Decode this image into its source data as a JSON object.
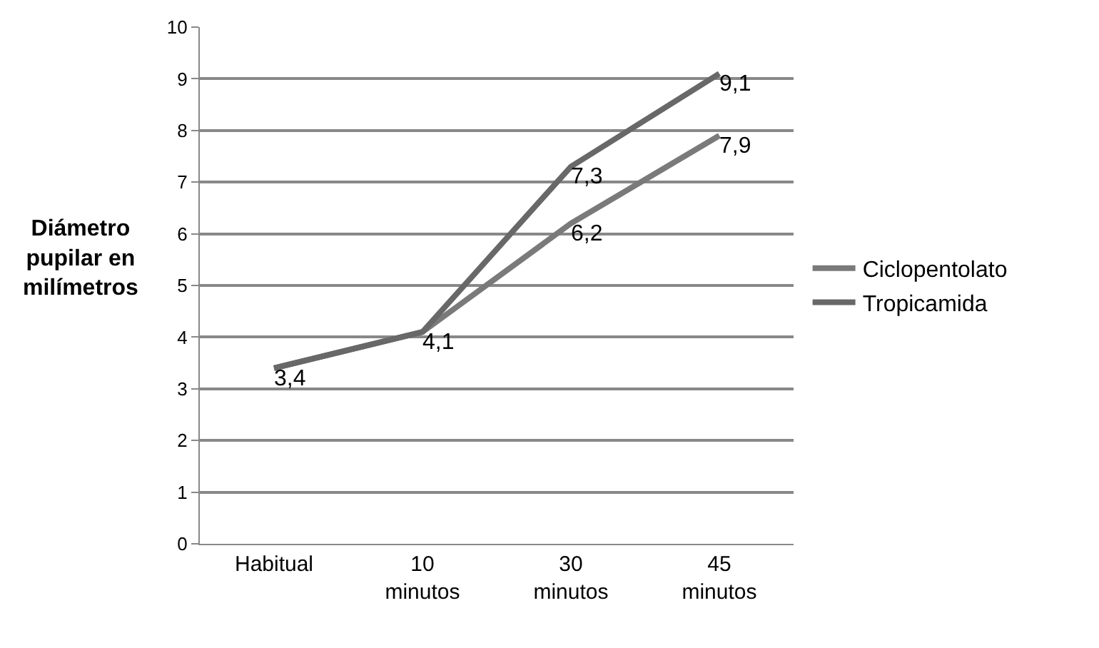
{
  "chart_data": {
    "type": "line",
    "ylabel": "Diámetro\npupilar en\nmilímetros",
    "categories": [
      "Habitual",
      "10\nminutos",
      "30\nminutos",
      "45\nminutos"
    ],
    "series": [
      {
        "name": "Ciclopentolato",
        "color": "#7a7a7a",
        "values": [
          3.4,
          4.1,
          6.2,
          7.9
        ],
        "value_labels": [
          "3,4",
          "4,1",
          "6,2",
          "7,9"
        ]
      },
      {
        "name": "Tropicamida",
        "color": "#686868",
        "values": [
          3.4,
          4.1,
          7.3,
          9.1
        ],
        "value_labels": [
          null,
          null,
          "7,3",
          "9,1"
        ]
      }
    ],
    "ylim": [
      0,
      10
    ],
    "yticks": [
      0,
      1,
      2,
      3,
      4,
      5,
      6,
      7,
      8,
      9,
      10
    ],
    "grid": "y",
    "legend": "right",
    "marker": "none",
    "line_style": "solid"
  }
}
